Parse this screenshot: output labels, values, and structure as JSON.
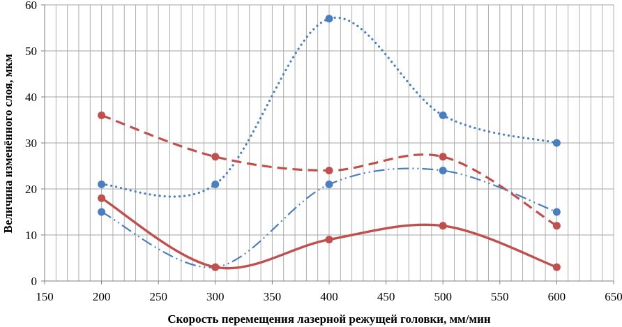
{
  "chart_data": {
    "type": "scatter",
    "title": "",
    "xlabel": "Скорость перемещения лазерной режущей головки, мм/мин",
    "ylabel": "Величина изменённого слоя, мкм",
    "xlim": [
      150,
      650
    ],
    "ylim": [
      0,
      60
    ],
    "x_ticks": [
      150,
      200,
      250,
      300,
      350,
      400,
      450,
      500,
      550,
      600,
      650
    ],
    "y_ticks": [
      0,
      10,
      20,
      30,
      40,
      50,
      60
    ],
    "x_tick_labels": [
      "150",
      "200",
      "250",
      "300",
      "350",
      "400",
      "450",
      "500",
      "550",
      "600",
      "650"
    ],
    "y_tick_labels": [
      "0",
      "10",
      "20",
      "30",
      "40",
      "50",
      "60"
    ],
    "x_minor_step": 10,
    "grid": true,
    "series": [
      {
        "name": "blue-dotted",
        "color": "#4a7ebf",
        "line_style": "dotted",
        "marker": "circle",
        "smooth": true,
        "x": [
          200,
          300,
          400,
          500,
          600
        ],
        "y": [
          21,
          21,
          57,
          36,
          30
        ]
      },
      {
        "name": "red-dashed",
        "color": "#c0504d",
        "line_style": "dashed",
        "marker": "circle",
        "smooth": true,
        "x": [
          200,
          300,
          400,
          500,
          600
        ],
        "y": [
          36,
          27,
          24,
          27,
          12
        ]
      },
      {
        "name": "blue-dash-dot",
        "color": "#4a7ebf",
        "line_style": "dash-dot-dot",
        "marker": "circle",
        "smooth": true,
        "x": [
          200,
          300,
          400,
          500,
          600
        ],
        "y": [
          15,
          3,
          21,
          24,
          15
        ]
      },
      {
        "name": "red-solid",
        "color": "#c0504d",
        "line_style": "solid",
        "marker": "circle",
        "smooth": true,
        "x": [
          200,
          300,
          400,
          500,
          600
        ],
        "y": [
          18,
          3,
          9,
          12,
          3
        ]
      }
    ]
  }
}
